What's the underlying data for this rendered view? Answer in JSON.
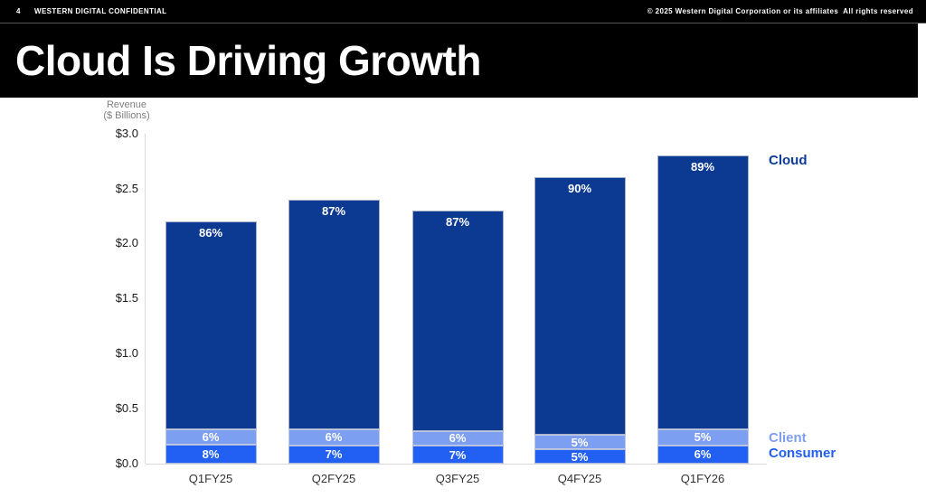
{
  "header": {
    "page_number": "4",
    "classification": "WESTERN DIGITAL CONFIDENTIAL",
    "copyright": "© 2025 Western Digital Corporation or its affiliates  All rights reserved"
  },
  "title": "Cloud Is Driving Growth",
  "chart_data": {
    "type": "bar",
    "stacked": true,
    "title": "Cloud Is Driving Growth",
    "axis_title_line1": "Revenue",
    "axis_title_line2": "($ Billions)",
    "xlabel": "",
    "ylabel": "Revenue ($ Billions)",
    "ylim": [
      0,
      3.0
    ],
    "grid": false,
    "legend_position": "right",
    "categories": [
      "Q1FY25",
      "Q2FY25",
      "Q3FY25",
      "Q4FY25",
      "Q1FY26"
    ],
    "totals_billions": [
      2.2,
      2.4,
      2.3,
      2.6,
      2.8
    ],
    "y_ticks": [
      "$3.0",
      "$2.5",
      "$2.0",
      "$1.5",
      "$1.0",
      "$0.5",
      "$0.0"
    ],
    "series": [
      {
        "name": "Consumer",
        "color": "#2160F2",
        "pct": [
          8,
          7,
          7,
          5,
          6
        ],
        "labels": [
          "8%",
          "7%",
          "7%",
          "5%",
          "6%"
        ]
      },
      {
        "name": "Client",
        "color": "#7D9FF2",
        "pct": [
          6,
          6,
          6,
          5,
          5
        ],
        "labels": [
          "6%",
          "6%",
          "6%",
          "5%",
          "5%"
        ]
      },
      {
        "name": "Cloud",
        "color": "#0C3A92",
        "pct": [
          86,
          87,
          87,
          90,
          89
        ],
        "labels": [
          "86%",
          "87%",
          "87%",
          "90%",
          "89%"
        ]
      }
    ],
    "legend": [
      {
        "label": "Cloud",
        "color": "#0D3B96"
      },
      {
        "label": "Client",
        "color": "#7D9FF2"
      },
      {
        "label": "Consumer",
        "color": "#2160F2"
      }
    ]
  }
}
